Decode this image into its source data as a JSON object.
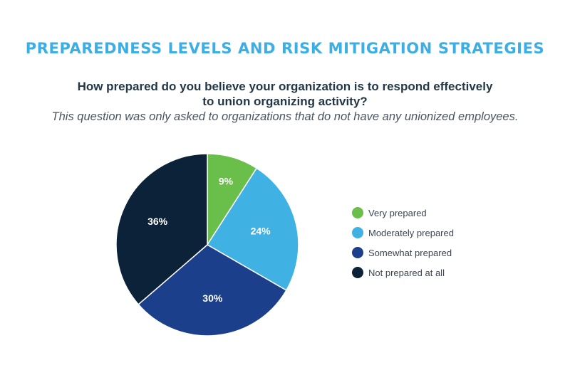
{
  "header": {
    "title": "PREPAREDNESS LEVELS AND RISK MITIGATION STRATEGIES",
    "question_line1": "How prepared do you believe your organization is to respond effectively",
    "question_line2": "to union organizing activity?",
    "note": "This question was only asked to organizations that do not have any unionized employees."
  },
  "chart_data": {
    "type": "pie",
    "title": "",
    "slices": [
      {
        "label": "Very prepared",
        "value": 9,
        "display": "9%",
        "color": "#6abf4b"
      },
      {
        "label": "Moderately prepared",
        "value": 24,
        "display": "24%",
        "color": "#3fb1e3"
      },
      {
        "label": "Somewhat prepared",
        "value": 30,
        "display": "30%",
        "color": "#1b3f8b"
      },
      {
        "label": "Not prepared at all",
        "value": 36,
        "display": "36%",
        "color": "#0b2238"
      }
    ],
    "legend_position": "right"
  }
}
